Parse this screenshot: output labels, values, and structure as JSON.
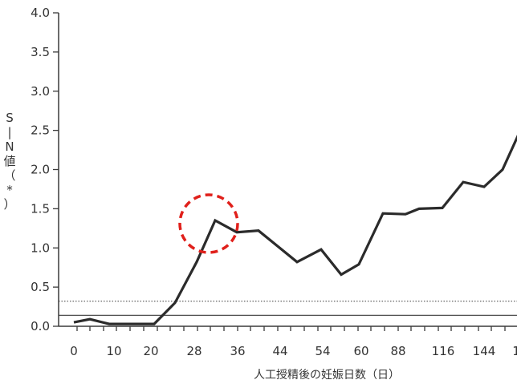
{
  "chart_data": {
    "type": "line",
    "xlabel": "人工授精後の妊娠日数（日）",
    "ylabel_chars": [
      "S",
      "|",
      "N",
      "値",
      "（",
      "*",
      "）"
    ],
    "ylim": [
      0.0,
      4.0
    ],
    "yticks": [
      "0.0",
      "0.5",
      "1.0",
      "1.5",
      "2.0",
      "2.5",
      "3.0",
      "3.5",
      "4.0"
    ],
    "xtick_labels": [
      "0",
      "10",
      "20",
      "28",
      "36",
      "44",
      "54",
      "60",
      "88",
      "116",
      "144",
      "1"
    ],
    "series": [
      {
        "values": [
          0.05,
          0.09,
          0.03,
          0.03,
          0.03,
          0.3,
          0.82,
          1.35,
          1.2,
          1.22,
          1.02,
          0.82,
          0.98,
          0.66,
          0.79,
          1.44,
          1.43,
          1.5,
          1.51,
          1.84,
          1.78,
          2.0,
          2.45
        ]
      }
    ],
    "reference_lines": [
      {
        "value": 0.32,
        "style": "dotted"
      },
      {
        "value": 0.14,
        "style": "solid"
      }
    ],
    "highlight": {
      "marker": "red-dashed-circle",
      "point_index": 7
    },
    "grid": false,
    "legend": "none"
  },
  "colors": {
    "line": "#2b2b2b",
    "axis": "#3a3a3a",
    "text": "#333333",
    "highlight": "#e0201b"
  }
}
